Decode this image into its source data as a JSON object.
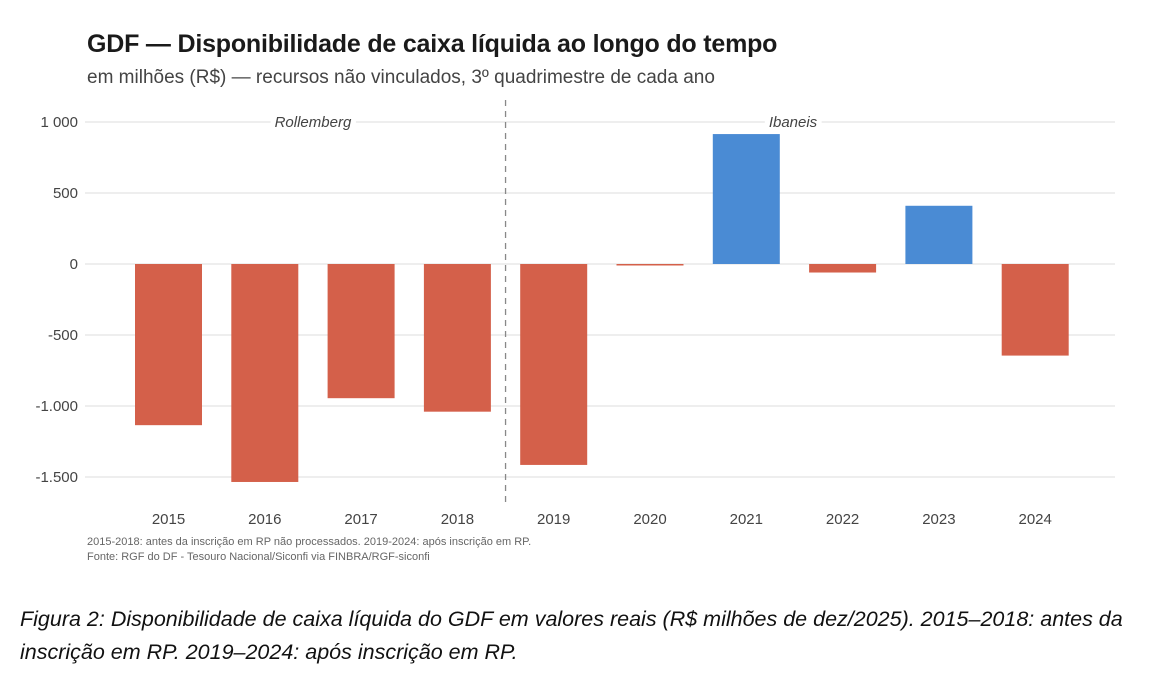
{
  "title": "GDF — Disponibilidade de caixa líquida ao longo do tempo",
  "subtitle": "em milhões (R$) — recursos não vinculados, 3º quadrimestre de cada ano",
  "footnotes": [
    "2015-2018: antes da inscrição em RP não processados. 2019-2024: após inscrição em RP.",
    "Fonte: RGF do DF - Tesouro Nacional/Siconfi via FINBRA/RGF-siconfi"
  ],
  "caption": "Figura 2: Disponibilidade de caixa líquida do GDF em valores reais (R$ milhões de dez/2025). 2015–2018: antes da inscrição em RP. 2019–2024: após inscrição em RP.",
  "colors": {
    "negative": "#D4604A",
    "positive": "#4A8BD4",
    "grid": "#e3e3e3",
    "divider": "#888888"
  },
  "chart_data": {
    "type": "bar",
    "title": "GDF — Disponibilidade de caixa líquida ao longo do tempo",
    "subtitle": "em milhões (R$) — recursos não vinculados, 3º quadrimestre de cada ano",
    "xlabel": "",
    "ylabel": "",
    "categories": [
      "2015",
      "2016",
      "2017",
      "2018",
      "2019",
      "2020",
      "2021",
      "2022",
      "2023",
      "2024"
    ],
    "values": [
      -1135,
      -1535,
      -945,
      -1040,
      -1415,
      -5,
      915,
      -60,
      410,
      -645
    ],
    "ylim": [
      -1650,
      1000
    ],
    "yticks": [
      1000,
      500,
      0,
      -500,
      -1000,
      -1500
    ],
    "ytick_labels": [
      "1 000",
      "500",
      "0",
      "-500",
      "-1.000",
      "-1.500"
    ],
    "grid": true,
    "legend": "none",
    "color_rule": "positive values blue, negative values red",
    "divider": {
      "between": [
        "2018",
        "2019"
      ],
      "style": "dashed"
    },
    "annotations": [
      {
        "text": "Rollemberg",
        "span": [
          "2015",
          "2018"
        ]
      },
      {
        "text": "Ibaneis",
        "span": [
          "2019",
          "2024"
        ]
      }
    ]
  }
}
